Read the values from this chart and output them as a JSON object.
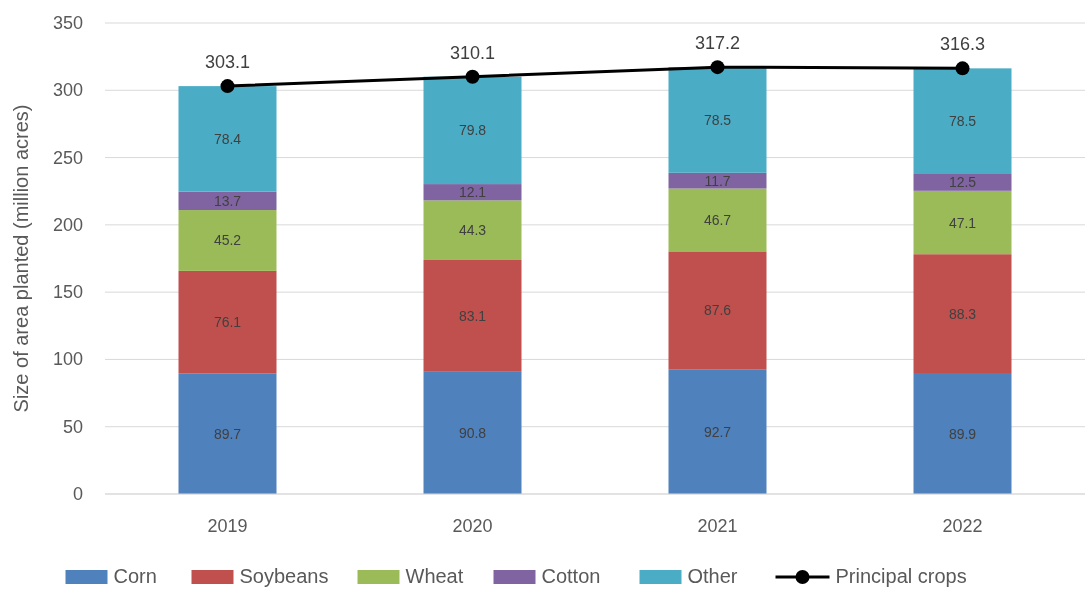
{
  "chart_data": {
    "type": "bar",
    "stacked": true,
    "ylabel": "Size of area planted (million acres)",
    "categories": [
      "2019",
      "2020",
      "2021",
      "2022"
    ],
    "series": [
      {
        "name": "Corn",
        "color": "#4f81bd",
        "values": [
          89.7,
          90.8,
          92.7,
          89.9
        ]
      },
      {
        "name": "Soybeans",
        "color": "#c0504d",
        "values": [
          76.1,
          83.1,
          87.6,
          88.3
        ]
      },
      {
        "name": "Wheat",
        "color": "#9bbb59",
        "values": [
          45.2,
          44.3,
          46.7,
          47.1
        ]
      },
      {
        "name": "Cotton",
        "color": "#8064a2",
        "values": [
          13.7,
          12.1,
          11.7,
          12.5
        ]
      },
      {
        "name": "Other",
        "color": "#4bacc6",
        "values": [
          78.4,
          79.8,
          78.5,
          78.5
        ]
      },
      {
        "name": "Principal crops",
        "type": "line",
        "color": "#000000",
        "values": [
          303.1,
          310.1,
          317.2,
          316.3
        ]
      }
    ],
    "ylim": [
      0,
      350
    ],
    "yticks": [
      0,
      50,
      100,
      150,
      200,
      250,
      300,
      350
    ],
    "grid": "y",
    "legend": "bottom",
    "marker": "circle",
    "data_labels": true
  }
}
